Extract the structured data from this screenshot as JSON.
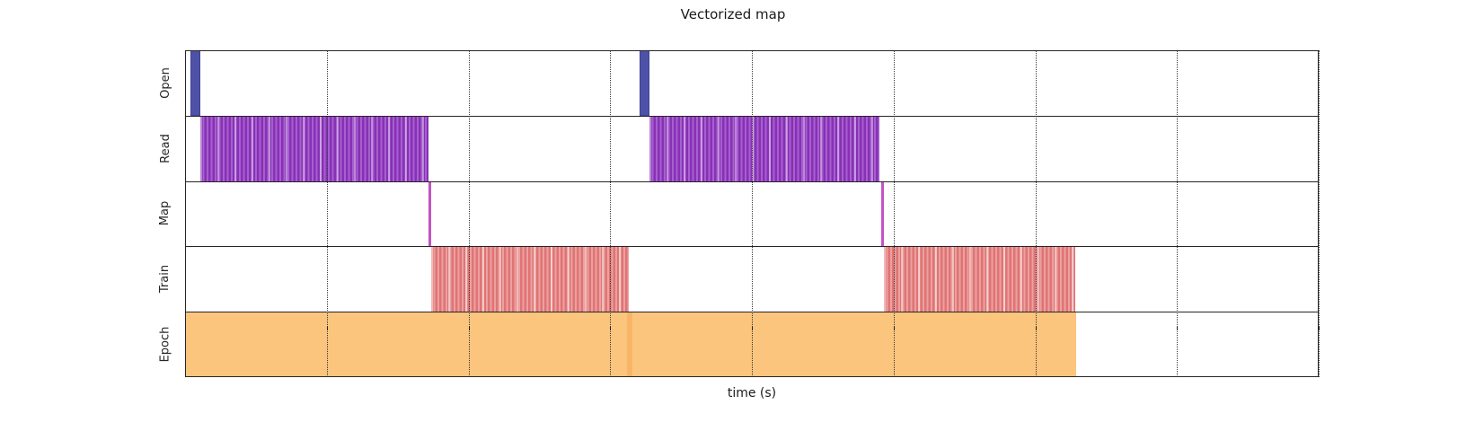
{
  "title": "Vectorized map",
  "chart_data": {
    "type": "timeline",
    "title": "Vectorized map",
    "xlabel": "time (s)",
    "x_axis": {
      "min": 0,
      "max": 8,
      "gridline_spacing": 1,
      "gridline_count": 9,
      "gridline_style": "dotted",
      "tick_labels_visible": false,
      "note": "axis shows tick marks and dotted gridlines but no numeric labels; interval values below are in gridline units"
    },
    "tracks": [
      {
        "id": "open",
        "label": "Open",
        "pattern": "solid",
        "fill": "#4d52a8",
        "edge": "#3c4195",
        "intervals": [
          {
            "start": 0.04,
            "end": 0.11
          },
          {
            "start": 3.21,
            "end": 3.28
          }
        ]
      },
      {
        "id": "read",
        "label": "Read",
        "pattern": "striped",
        "stripe_dark": "#8731b5",
        "stripe_light": "#a75fd0",
        "stripe_pale": "rgba(255,255,255,0.42)",
        "intervals": [
          {
            "start": 0.11,
            "end": 1.72
          },
          {
            "start": 3.28,
            "end": 4.9
          }
        ]
      },
      {
        "id": "map",
        "label": "Map",
        "pattern": "solid",
        "fill": "#c353c3",
        "edge": "#c353c3",
        "intervals": [
          {
            "start": 1.72,
            "end": 1.74
          },
          {
            "start": 4.91,
            "end": 4.93
          }
        ]
      },
      {
        "id": "train",
        "label": "Train",
        "pattern": "striped",
        "stripe_dark": "#df7474",
        "stripe_light": "#eda0a0",
        "stripe_pale": "rgba(255,255,255,0.50)",
        "intervals": [
          {
            "start": 1.74,
            "end": 3.13
          },
          {
            "start": 4.93,
            "end": 6.28
          }
        ]
      },
      {
        "id": "epoch",
        "label": "Epoch",
        "pattern": "solid",
        "fill": "#fcc57e",
        "edge": "#fcc57e",
        "intervals": [
          {
            "start": 0.0,
            "end": 3.14
          },
          {
            "start": 3.14,
            "end": 6.29
          }
        ],
        "seams": [
          {
            "start": 3.12,
            "end": 3.16,
            "color": "#f9b566"
          }
        ]
      }
    ]
  },
  "layout_colors": {
    "spine": "#262626",
    "gridline": "#3a3a3a",
    "text": "#1a1a1a"
  }
}
